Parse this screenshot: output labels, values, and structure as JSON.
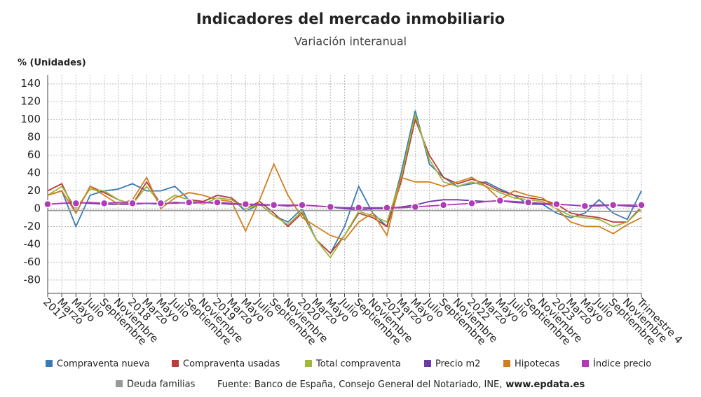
{
  "chart_data": {
    "type": "line",
    "title": "Indicadores del mercado inmobiliario",
    "subtitle": "Variación interanual",
    "y_label": "% (Unidades)",
    "source": "Fuente: Banco de España, Consejo General del Notariado, INE,",
    "source_link": "www.epdata.es",
    "categories": [
      "2017",
      "Marzo",
      "Mayo",
      "Julio",
      "Septiembre",
      "Noviembre",
      "2018",
      "Marzo",
      "Mayo",
      "Julio",
      "Septiembre",
      "Noviembre",
      "2019",
      "Marzo",
      "Mayo",
      "Julio",
      "Septiembre",
      "Noviembre",
      "2020",
      "Marzo",
      "Mayo",
      "Julio",
      "Septiembre",
      "Noviembre",
      "2021",
      "Marzo",
      "Mayo",
      "Julio",
      "Septiembre",
      "Noviembre",
      "2022",
      "Marzo",
      "Mayo",
      "Julio",
      "Septiembre",
      "Noviembre",
      "2023",
      "Marzo",
      "Mayo",
      "Julio",
      "Septiembre",
      "Noviembre",
      "Trimestre 4"
    ],
    "series": [
      {
        "name": "Compraventa nueva",
        "color": "#3a7bb5",
        "values": [
          15,
          20,
          -20,
          15,
          20,
          22,
          28,
          20,
          20,
          25,
          10,
          8,
          15,
          12,
          -3,
          5,
          -8,
          -15,
          0,
          -35,
          -50,
          -20,
          25,
          -5,
          -20,
          40,
          110,
          50,
          35,
          25,
          28,
          30,
          22,
          15,
          5,
          5,
          -5,
          -10,
          -5,
          10,
          -5,
          -12,
          20
        ]
      },
      {
        "name": "Compraventa usadas",
        "color": "#b83c3c",
        "values": [
          20,
          28,
          -5,
          25,
          18,
          10,
          5,
          30,
          5,
          15,
          10,
          8,
          15,
          12,
          0,
          8,
          -5,
          -20,
          -5,
          -35,
          -50,
          -30,
          -5,
          -10,
          -20,
          30,
          100,
          60,
          35,
          28,
          33,
          28,
          20,
          15,
          12,
          10,
          5,
          -5,
          -8,
          -10,
          -15,
          -15,
          2
        ]
      },
      {
        "name": "Total compraventa",
        "color": "#9db83a",
        "values": [
          15,
          25,
          0,
          22,
          20,
          10,
          5,
          25,
          5,
          15,
          10,
          5,
          12,
          10,
          0,
          5,
          -8,
          -18,
          -3,
          -35,
          -55,
          -30,
          -3,
          -8,
          -15,
          35,
          105,
          55,
          30,
          25,
          30,
          25,
          18,
          12,
          10,
          8,
          0,
          -8,
          -10,
          -12,
          -20,
          -15,
          0
        ]
      },
      {
        "name": "Precio m2",
        "color": "#6a3aa8",
        "values": [
          5,
          6,
          7,
          6,
          5,
          5,
          5,
          6,
          5,
          7,
          6,
          7,
          6,
          5,
          5,
          4,
          4,
          3,
          4,
          3,
          2,
          0,
          -1,
          0,
          0,
          2,
          4,
          8,
          10,
          10,
          9,
          8,
          9,
          7,
          6,
          5,
          5,
          4,
          3,
          4,
          4,
          3,
          2
        ]
      },
      {
        "name": "Hipotecas",
        "color": "#d17f1e",
        "values": [
          15,
          20,
          -5,
          25,
          15,
          5,
          10,
          35,
          0,
          12,
          18,
          15,
          10,
          8,
          -25,
          10,
          50,
          15,
          -10,
          -20,
          -30,
          -35,
          -15,
          -5,
          -30,
          35,
          30,
          30,
          25,
          30,
          35,
          25,
          10,
          20,
          15,
          12,
          0,
          -15,
          -20,
          -20,
          -28,
          -18,
          -10
        ]
      },
      {
        "name": "Índice precio",
        "color": "#b03ab8",
        "markers": true,
        "values": [
          5,
          6,
          6,
          7,
          6,
          7,
          6,
          6,
          6,
          6,
          7,
          7,
          7,
          6,
          5,
          5,
          4,
          4,
          4,
          3,
          2,
          1,
          1,
          1,
          1,
          1,
          2,
          3,
          4,
          5,
          6,
          8,
          9,
          8,
          7,
          6,
          5,
          4,
          3,
          3,
          4,
          4,
          4
        ]
      },
      {
        "name": "Deuda familias",
        "color": "#999999",
        "values": [
          -2,
          -2,
          -2,
          -2,
          -2,
          -2,
          -2,
          -2,
          -2,
          -2,
          -2,
          -2,
          -2,
          -2,
          -2,
          -2,
          -2,
          -2,
          -2,
          -2,
          -2,
          -2,
          -2,
          -2,
          -2,
          -2,
          -2,
          -2,
          -2,
          -2,
          -2,
          -2,
          -2,
          -2,
          -2,
          -2,
          -3,
          -3,
          -3,
          -3,
          -3,
          -3,
          -3
        ]
      }
    ],
    "ylim": [
      -95,
      150
    ],
    "yticks": [
      -80,
      -60,
      -40,
      -20,
      0,
      20,
      40,
      60,
      80,
      100,
      120,
      140
    ],
    "grid": true
  }
}
